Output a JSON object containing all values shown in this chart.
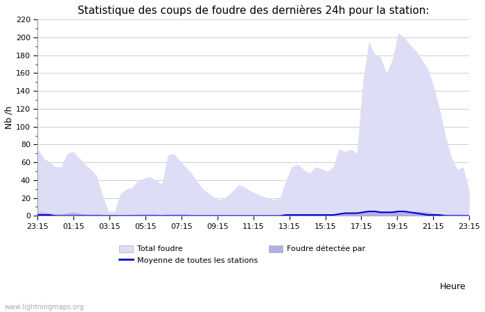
{
  "title": "Statistique des coups de foudre des dernières 24h pour la station:",
  "ylabel": "Nb /h",
  "xlabel_right": "Heure",
  "watermark": "www.lightningmaps.org",
  "ylim": [
    0,
    220
  ],
  "yticks": [
    0,
    20,
    40,
    60,
    80,
    100,
    120,
    140,
    160,
    180,
    200,
    220
  ],
  "xtick_labels": [
    "23:15",
    "01:15",
    "03:15",
    "05:15",
    "07:15",
    "09:15",
    "11:15",
    "13:15",
    "15:15",
    "17:15",
    "19:15",
    "21:15",
    "23:15"
  ],
  "fill1_color": "#ddddf5",
  "fill2_color": "#b0b0e8",
  "line_color": "#0000cc",
  "background_color": "#ffffff",
  "grid_color": "#cccccc",
  "title_fontsize": 11,
  "axis_fontsize": 9,
  "tick_fontsize": 8,
  "legend_label1": "Total foudre",
  "legend_label2": "Moyenne de toutes les stations",
  "legend_label3": "Foudre détectée par",
  "total_foudre": [
    75,
    65,
    60,
    55,
    55,
    70,
    72,
    65,
    58,
    52,
    45,
    22,
    5,
    5,
    25,
    30,
    32,
    40,
    42,
    44,
    40,
    35,
    68,
    70,
    62,
    55,
    48,
    38,
    30,
    25,
    20,
    18,
    22,
    28,
    35,
    32,
    28,
    25,
    22,
    20,
    18,
    20,
    40,
    55,
    58,
    52,
    48,
    55,
    53,
    50,
    55,
    75,
    72,
    75,
    70,
    150,
    195,
    182,
    178,
    160,
    175,
    205,
    200,
    192,
    185,
    175,
    165,
    145,
    120,
    90,
    65,
    52,
    55,
    28
  ],
  "detected": [
    4,
    4,
    3,
    2,
    2,
    3,
    4,
    3,
    2,
    2,
    2,
    1,
    0,
    0,
    1,
    1,
    1,
    2,
    2,
    2,
    2,
    1,
    2,
    2,
    2,
    2,
    1,
    1,
    1,
    1,
    1,
    1,
    1,
    1,
    1,
    1,
    1,
    1,
    1,
    1,
    1,
    1,
    2,
    2,
    2,
    2,
    2,
    2,
    2,
    2,
    2,
    3,
    3,
    3,
    3,
    5,
    5,
    5,
    5,
    5,
    5,
    5,
    5,
    5,
    5,
    5,
    4,
    3,
    2,
    2,
    2,
    2,
    2,
    1
  ],
  "moyenne": [
    1,
    1,
    1,
    0,
    0,
    0,
    0,
    0,
    0,
    0,
    0,
    0,
    0,
    0,
    0,
    0,
    0,
    0,
    0,
    0,
    0,
    0,
    0,
    0,
    0,
    0,
    0,
    0,
    0,
    0,
    0,
    0,
    0,
    0,
    0,
    0,
    0,
    0,
    0,
    0,
    0,
    0,
    1,
    1,
    1,
    1,
    1,
    1,
    1,
    1,
    1,
    2,
    3,
    3,
    3,
    4,
    5,
    5,
    4,
    4,
    4,
    5,
    5,
    4,
    3,
    2,
    1,
    1,
    1,
    0,
    0,
    0,
    0,
    0
  ]
}
